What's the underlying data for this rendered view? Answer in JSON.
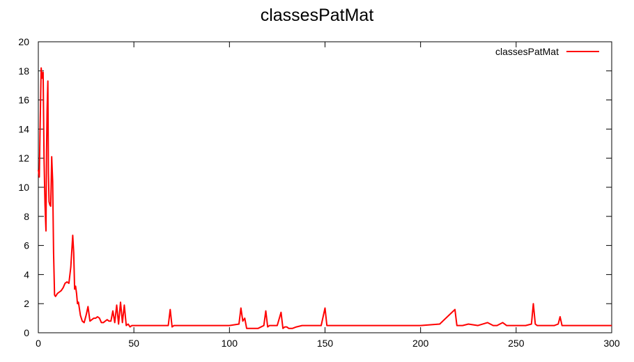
{
  "chart_data": {
    "type": "line",
    "title": "classesPatMat",
    "xlabel": "",
    "ylabel": "",
    "xlim": [
      0,
      300
    ],
    "ylim": [
      0,
      20
    ],
    "xticks": [
      0,
      50,
      100,
      150,
      200,
      250,
      300
    ],
    "yticks": [
      0,
      2,
      4,
      6,
      8,
      10,
      12,
      14,
      16,
      18,
      20
    ],
    "legend_position": "top-right",
    "grid": false,
    "series": [
      {
        "name": "classesPatMat",
        "color": "#ff0000",
        "x": [
          0,
          0.5,
          1,
          1.5,
          2,
          2.5,
          3,
          3.5,
          4,
          4.3,
          4.6,
          5,
          5.3,
          5.6,
          6,
          6.5,
          7,
          7.5,
          8,
          8.5,
          9,
          9.5,
          10,
          11,
          12,
          13,
          14,
          15,
          16,
          17,
          18,
          18.5,
          19,
          19.5,
          20,
          20.5,
          21,
          22,
          23,
          24,
          25,
          26,
          27,
          28,
          29,
          30,
          31,
          32,
          33,
          34,
          35,
          36,
          37,
          38,
          39,
          40,
          41,
          42,
          43,
          44,
          45,
          46,
          47,
          48,
          49,
          50,
          55,
          60,
          65,
          68,
          69,
          70,
          71,
          72,
          75,
          80,
          85,
          90,
          92,
          95,
          100,
          105,
          106,
          107,
          108,
          109,
          110,
          111,
          112,
          115,
          118,
          119,
          120,
          121,
          122,
          125,
          127,
          128,
          129,
          130,
          131,
          133,
          135,
          138,
          140,
          141,
          142,
          143,
          145,
          148,
          150,
          151,
          152,
          153,
          155,
          160,
          170,
          180,
          190,
          200,
          210,
          218,
          219,
          220,
          221,
          222,
          225,
          230,
          235,
          238,
          240,
          243,
          245,
          248,
          250,
          255,
          258,
          259,
          260,
          261,
          262,
          265,
          270,
          272,
          273,
          274,
          275,
          280,
          290,
          300
        ],
        "values": [
          11.2,
          10.7,
          14.5,
          18.2,
          17.5,
          17.9,
          12.0,
          8.8,
          7.0,
          12.5,
          15.3,
          17.3,
          11.0,
          9.0,
          8.8,
          8.7,
          12.1,
          10.4,
          5.5,
          2.6,
          2.5,
          2.6,
          2.7,
          2.8,
          2.9,
          3.1,
          3.4,
          3.5,
          3.4,
          4.5,
          6.7,
          5.5,
          3.0,
          3.2,
          2.7,
          2.0,
          2.1,
          1.2,
          0.8,
          0.7,
          1.2,
          1.8,
          0.8,
          0.9,
          1.0,
          1.0,
          1.1,
          1.0,
          0.7,
          0.7,
          0.8,
          0.9,
          0.8,
          0.8,
          1.5,
          0.7,
          1.9,
          0.6,
          2.1,
          0.7,
          1.9,
          0.5,
          0.6,
          0.4,
          0.5,
          0.5,
          0.5,
          0.5,
          0.5,
          0.5,
          1.6,
          0.4,
          0.5,
          0.5,
          0.5,
          0.5,
          0.5,
          0.5,
          0.5,
          0.5,
          0.5,
          0.6,
          1.7,
          0.8,
          1.0,
          0.3,
          0.3,
          0.3,
          0.3,
          0.3,
          0.5,
          1.5,
          0.4,
          0.5,
          0.5,
          0.5,
          1.4,
          0.3,
          0.4,
          0.4,
          0.3,
          0.3,
          0.4,
          0.5,
          0.5,
          0.5,
          0.5,
          0.5,
          0.5,
          0.5,
          1.7,
          0.5,
          0.5,
          0.5,
          0.5,
          0.5,
          0.5,
          0.5,
          0.5,
          0.5,
          0.6,
          1.6,
          0.5,
          0.5,
          0.5,
          0.5,
          0.6,
          0.5,
          0.7,
          0.5,
          0.5,
          0.7,
          0.5,
          0.5,
          0.5,
          0.5,
          0.6,
          2.0,
          0.6,
          0.5,
          0.5,
          0.5,
          0.5,
          0.6,
          1.1,
          0.5,
          0.5,
          0.5,
          0.5,
          0.5
        ]
      }
    ]
  }
}
